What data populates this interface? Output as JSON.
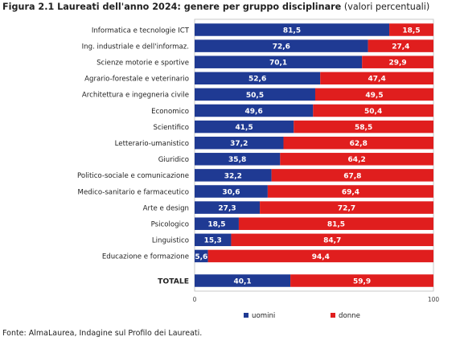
{
  "title": {
    "main": "Figura 2.1 Laureati dell'anno 2024: genere per gruppo disciplinare",
    "note": "(valori percentuali)"
  },
  "source": "Fonte: AlmaLaurea, Indagine sul Profilo dei Laureati.",
  "colors": {
    "uomini": "#1f3a93",
    "donne": "#e01e1e"
  },
  "chart_data": {
    "type": "bar",
    "orientation": "horizontal",
    "stacked": true,
    "categories": [
      "Informatica e tecnologie ICT",
      "Ing. industriale e dell'informaz.",
      "Scienze motorie e sportive",
      "Agrario-forestale e veterinario",
      "Architettura e ingegneria civile",
      "Economico",
      "Scientifico",
      "Letterario-umanistico",
      "Giuridico",
      "Politico-sociale e comunicazione",
      "Medico-sanitario e farmaceutico",
      "Arte e design",
      "Psicologico",
      "Linguistico",
      "Educazione e formazione",
      "TOTALE"
    ],
    "series": [
      {
        "name": "uomini",
        "values": [
          81.5,
          72.6,
          70.1,
          52.6,
          50.5,
          49.6,
          41.5,
          37.2,
          35.8,
          32.2,
          30.6,
          27.3,
          18.5,
          15.3,
          5.6,
          40.1
        ]
      },
      {
        "name": "donne",
        "values": [
          18.5,
          27.4,
          29.9,
          47.4,
          49.5,
          50.4,
          58.5,
          62.8,
          64.2,
          67.8,
          69.4,
          72.7,
          81.5,
          84.7,
          94.4,
          59.9
        ]
      }
    ],
    "data_labels": {
      "uomini": [
        "81,5",
        "72,6",
        "70,1",
        "52,6",
        "50,5",
        "49,6",
        "41,5",
        "37,2",
        "35,8",
        "32,2",
        "30,6",
        "27,3",
        "18,5",
        "15,3",
        "5,6",
        "40,1"
      ],
      "donne": [
        "18,5",
        "27,4",
        "29,9",
        "47,4",
        "49,5",
        "50,4",
        "58,5",
        "62,8",
        "64,2",
        "67,8",
        "69,4",
        "72,7",
        "81,5",
        "84,7",
        "94,4",
        "59,9"
      ]
    },
    "xlim": [
      0,
      100
    ],
    "xticks": [
      "0",
      "100"
    ],
    "legend": {
      "placement": "bottom",
      "entries": [
        "uomini",
        "donne"
      ]
    },
    "grid": false
  }
}
